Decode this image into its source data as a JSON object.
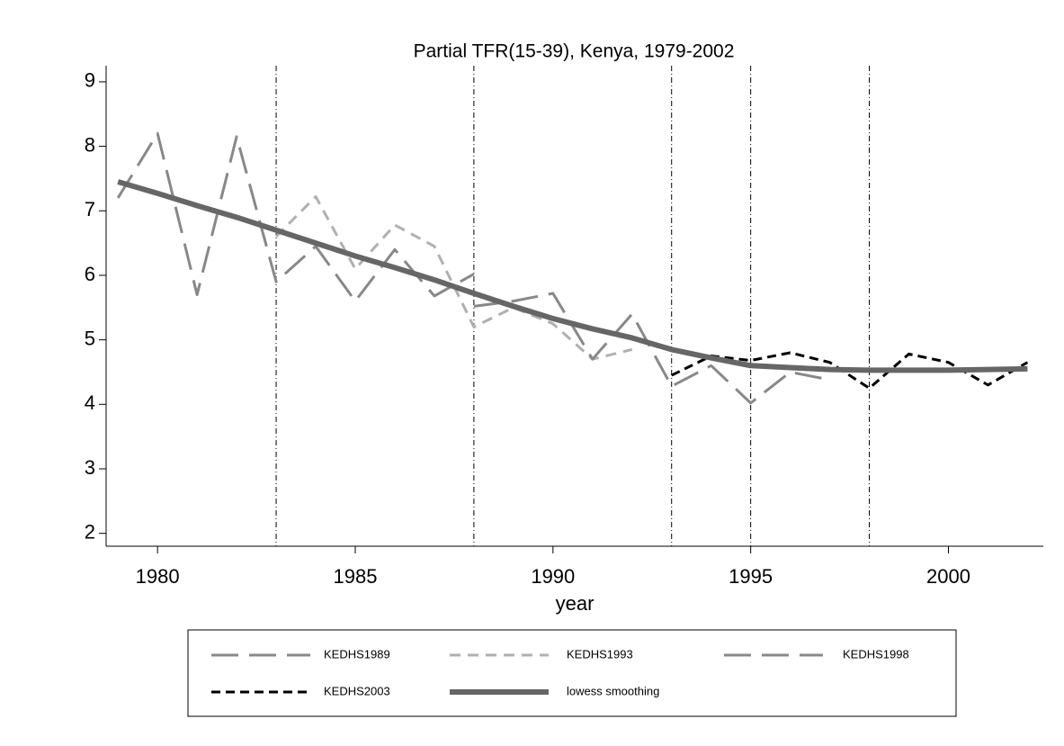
{
  "chart_data": {
    "type": "line",
    "title": "Partial TFR(15-39), Kenya, 1979-2002",
    "x_label": "year",
    "xlim": [
      1978.7,
      2002.4
    ],
    "xticks": [
      1980,
      1985,
      1990,
      1995,
      2000
    ],
    "ylim": [
      1.8,
      9.25
    ],
    "yticks": [
      2,
      3,
      4,
      5,
      6,
      7,
      8,
      9
    ],
    "vlines": [
      1983,
      1988,
      1993,
      1995,
      1998
    ],
    "series": [
      {
        "name": "KEDHS1989",
        "color": "#888888",
        "style": "long-dash",
        "x": [
          1979,
          1980,
          1981,
          1982,
          1983,
          1984,
          1985,
          1986,
          1987,
          1988
        ],
        "values": [
          7.2,
          8.2,
          5.7,
          8.15,
          5.9,
          6.45,
          5.6,
          6.4,
          5.68,
          6.02
        ]
      },
      {
        "name": "KEDHS1993",
        "color": "#b0b0b0",
        "style": "short-dash",
        "x": [
          1983,
          1984,
          1985,
          1986,
          1987,
          1988,
          1989,
          1990,
          1991,
          1992
        ],
        "values": [
          6.6,
          7.22,
          6.1,
          6.78,
          6.45,
          5.2,
          5.5,
          5.25,
          4.7,
          4.85
        ]
      },
      {
        "name": "KEDHS1998",
        "color": "#888888",
        "style": "long-dash",
        "x": [
          1988,
          1989,
          1990,
          1991,
          1992,
          1993,
          1994,
          1995,
          1996,
          1997
        ],
        "values": [
          5.52,
          5.6,
          5.72,
          4.7,
          5.4,
          4.28,
          4.6,
          4.02,
          4.5,
          4.38
        ]
      },
      {
        "name": "KEDHS2003",
        "color": "#000000",
        "style": "dash",
        "x": [
          1993,
          1994,
          1995,
          1996,
          1997,
          1998,
          1999,
          2000,
          2001,
          2002
        ],
        "values": [
          4.45,
          4.75,
          4.68,
          4.8,
          4.65,
          4.25,
          4.78,
          4.65,
          4.3,
          4.65
        ]
      },
      {
        "name": "lowess smoothing",
        "color": "#666666",
        "style": "solid",
        "x": [
          1979,
          1980,
          1981,
          1982,
          1983,
          1984,
          1985,
          1986,
          1987,
          1988,
          1989,
          1990,
          1991,
          1992,
          1993,
          1994,
          1995,
          1996,
          1997,
          1998,
          1999,
          2000,
          2001,
          2002
        ],
        "values": [
          7.45,
          7.27,
          7.08,
          6.9,
          6.7,
          6.5,
          6.3,
          6.12,
          5.93,
          5.72,
          5.52,
          5.33,
          5.17,
          5.03,
          4.85,
          4.72,
          4.6,
          4.57,
          4.54,
          4.53,
          4.53,
          4.53,
          4.54,
          4.55
        ]
      }
    ]
  }
}
